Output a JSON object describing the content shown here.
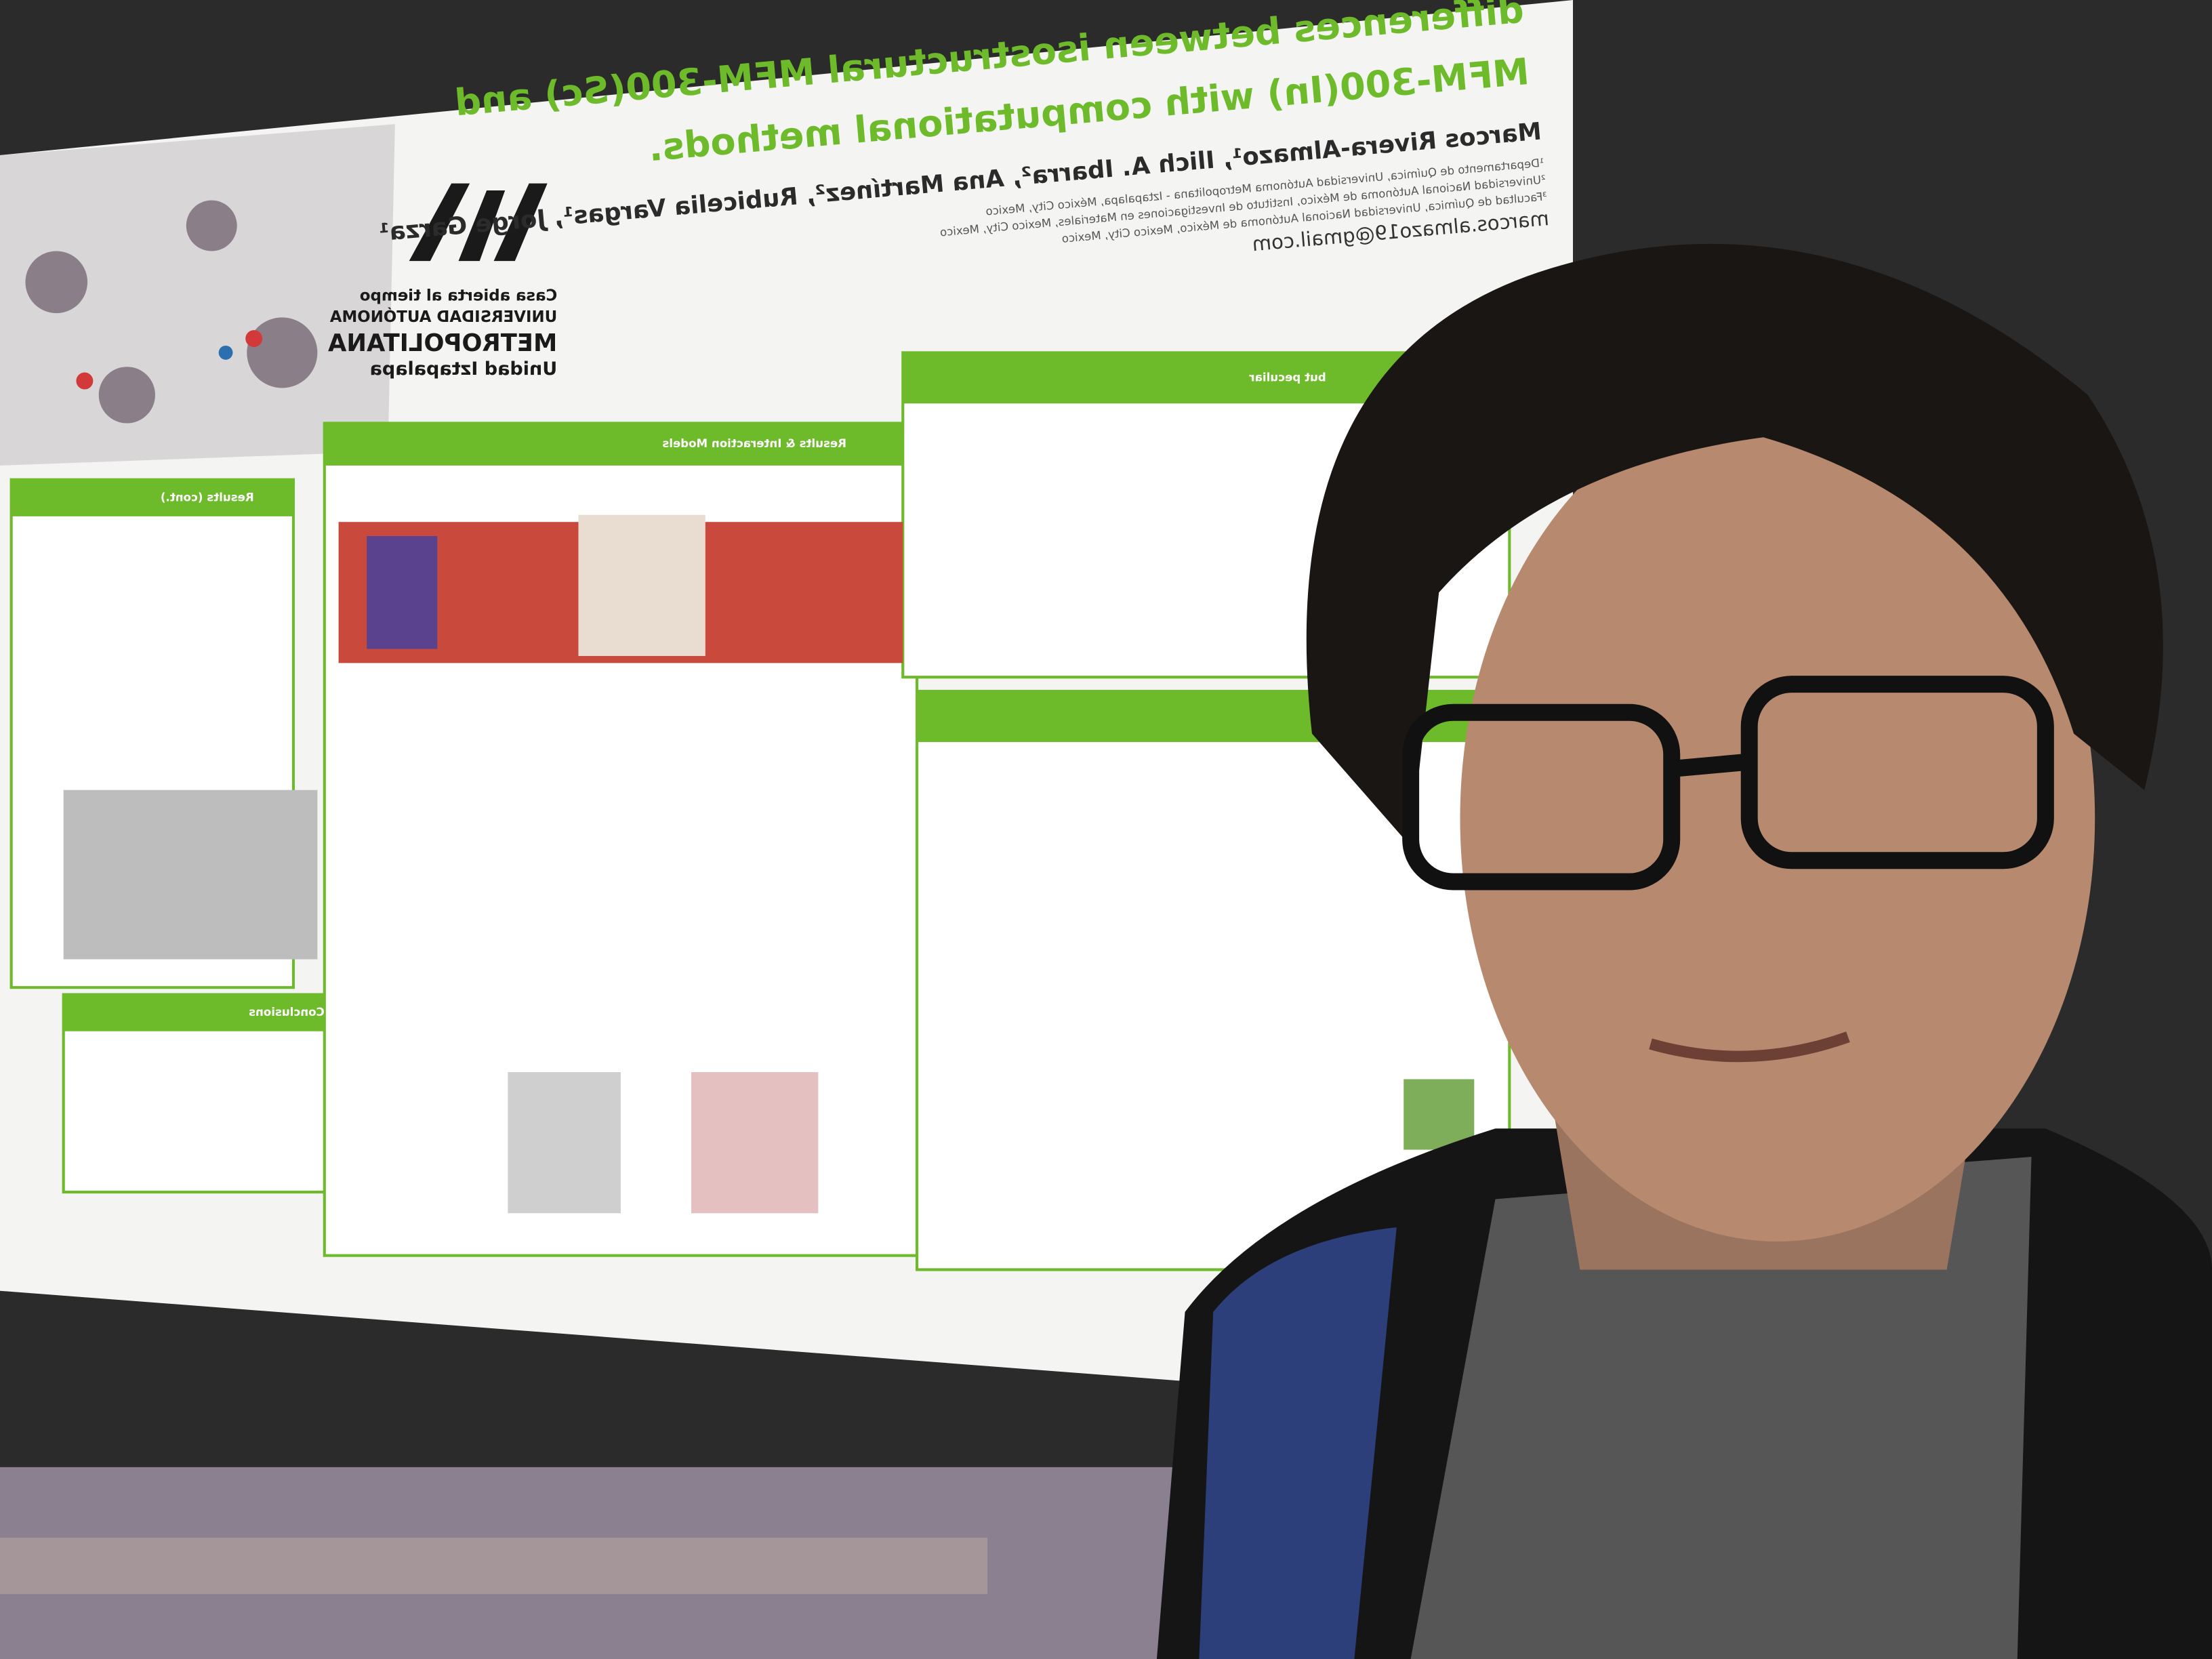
{
  "poster": {
    "title_lines": [
      "differences between isostructural MFM-300(Sc) and",
      "MFM-300(In) with computational methods."
    ],
    "authors": "Marcos Rivera-Almazo¹, Ilich A. Ibarra², Ana Martínez², Rubicelia Vargas¹, Jorge Garza¹",
    "affiliations": [
      "¹Departamento de Química, Universidad Autónoma Metropolitana - Iztapalapa, México City, Mexico",
      "²Universidad Nacional Autónoma de México, Instituto de Investigaciones en Materiales, Mexico City, Mexico",
      "³Facultad de Química, Universidad Nacional Autónoma de México, Mexico City, Mexico"
    ],
    "email": "marcos.almazo19@gmail.com",
    "logo": {
      "motto": "Casa abierta al tiempo",
      "name_lines": [
        "UNIVERSIDAD AUTÓNOMA",
        "METROPOLITANA",
        "Unidad Iztapalapa"
      ]
    },
    "sections": [
      "Results & Interaction Models",
      "Results (cont.)",
      "Conclusions",
      "but peculiar"
    ]
  }
}
